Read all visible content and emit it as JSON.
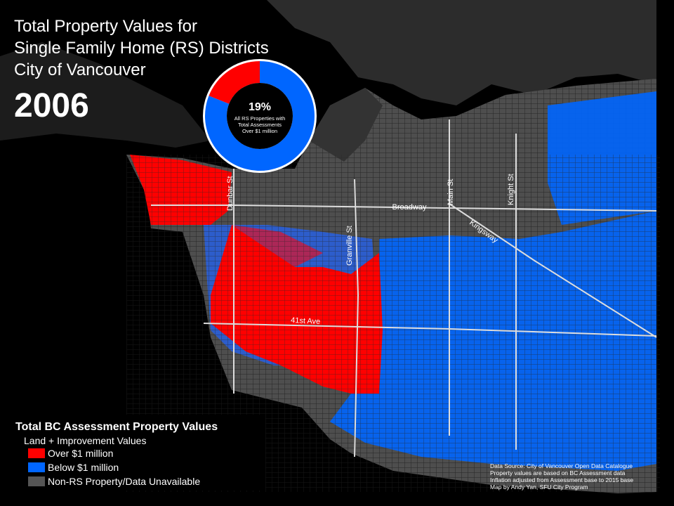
{
  "title": {
    "lines": [
      "Total Property Values for",
      "Single Family Home (RS) Districts",
      "City of Vancouver"
    ],
    "year": "2006"
  },
  "donut": {
    "value": 19,
    "value_label": "19%",
    "caption": [
      "All RS Properties with",
      "Total Assessments",
      "Over $1 million"
    ],
    "colors": [
      "#ff0000",
      "#0066ff"
    ]
  },
  "streets": [
    "Dunbar St",
    "Granville St",
    "Main St",
    "Knight St",
    "Broadway",
    "Kingsway",
    "41st Ave"
  ],
  "legend": {
    "title": "Total BC Assessment Property Values",
    "subtitle": "Land + Improvement  Values",
    "items": [
      {
        "label": "Over $1 million",
        "color": "#ff0000"
      },
      {
        "label": "Below $1 million",
        "color": "#0066ff"
      },
      {
        "label": "Non-RS Property/Data Unavailable",
        "color": "#555555"
      }
    ]
  },
  "source": [
    "Data Source: City of Vancouver Open Data Catalogue",
    "Property values are based on BC Assessment data",
    "Inflation adjusted from Assessment base to 2015 base",
    "Map by Andy Yan, SFU City Program"
  ]
}
